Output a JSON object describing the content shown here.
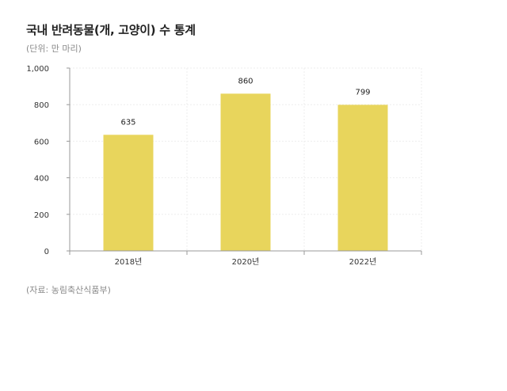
{
  "header": {
    "title": "국내 반려동물(개, 고양이) 수 통계",
    "unit": "(단위: 만 마리)"
  },
  "footer": {
    "source": "(자료: 농림축산식품부)"
  },
  "colors": {
    "bar": "#e8d55c",
    "grid": "#eeeeee",
    "axis": "#999999"
  },
  "chart_data": {
    "type": "bar",
    "title": "국내 반려동물(개, 고양이) 수 통계",
    "xlabel": "",
    "ylabel": "",
    "categories": [
      "2018년",
      "2020년",
      "2022년"
    ],
    "values": [
      635,
      860,
      799
    ],
    "data_labels": [
      "635",
      "860",
      "799"
    ],
    "ylim": [
      0,
      1000
    ],
    "yticks": [
      0,
      200,
      400,
      600,
      800,
      1000
    ],
    "ytick_labels": [
      "0",
      "200",
      "400",
      "600",
      "800",
      "1,000"
    ],
    "grid": true,
    "legend": "none"
  }
}
